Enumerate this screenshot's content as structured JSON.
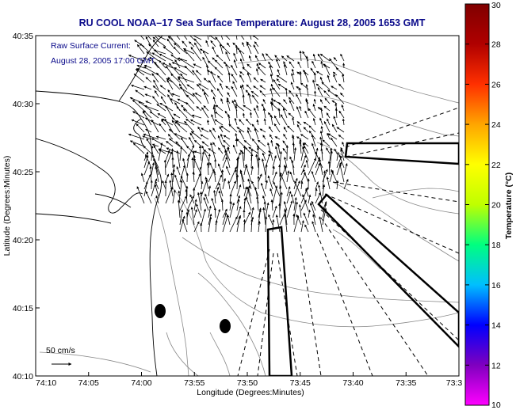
{
  "title": "RU COOL  NOAA–17  Sea Surface Temperature:  August 28, 2005 1653 GMT",
  "annotation": {
    "line1": "Raw Surface Current:",
    "line2": "August 28, 2005 17:00 GMT"
  },
  "scale_label": "50 cm/s",
  "axes": {
    "xlabel": "Longitude (Degrees:Minutes)",
    "ylabel": "Latitude (Degrees:Minutes)",
    "x_ticks": [
      "74:10",
      "74:05",
      "74:00",
      "73:55",
      "73:50",
      "73:45",
      "73:40",
      "73:35",
      "73:3"
    ],
    "y_ticks": [
      "40:35",
      "40:30",
      "40:25",
      "40:20",
      "40:15",
      "40:10"
    ]
  },
  "colorbar": {
    "label": "Temperature (°C)",
    "ticks": [
      "30",
      "28",
      "26",
      "24",
      "22",
      "20",
      "18",
      "16",
      "14",
      "12",
      "10"
    ],
    "range": [
      10,
      30
    ],
    "colors": [
      "#ff00ff",
      "#7f00bf",
      "#0000ff",
      "#00bfff",
      "#00ff80",
      "#bfff00",
      "#ffff00",
      "#ffa500",
      "#ff3000",
      "#b00000",
      "#800000"
    ]
  },
  "chart_data": {
    "type": "map",
    "title": "RU COOL  NOAA–17  Sea Surface Temperature:  August 28, 2005 1653 GMT",
    "xlabel": "Longitude (Degrees:Minutes)",
    "ylabel": "Latitude (Degrees:Minutes)",
    "x_range_minutes_west": [
      74.1667,
      73.5
    ],
    "y_range_degrees": [
      40.1667,
      40.5833
    ],
    "station_markers": [
      {
        "lon": "73:58.9",
        "lat": "40:14.6"
      },
      {
        "lon": "73:52.4",
        "lat": "40:13.5"
      }
    ]
  }
}
